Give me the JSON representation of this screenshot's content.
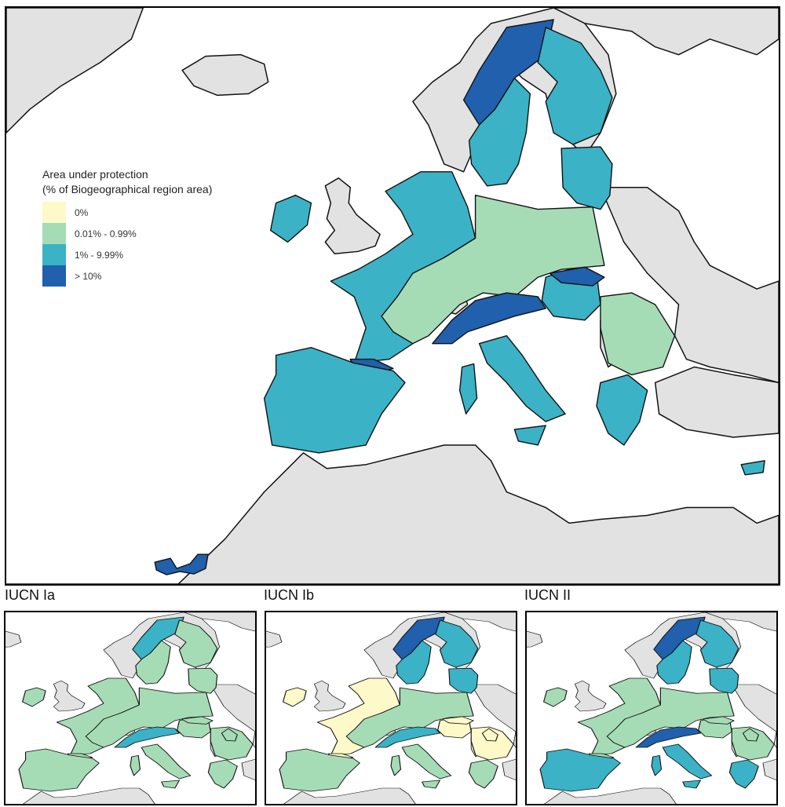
{
  "legend": {
    "title_line1": "Area under protection",
    "title_line2": "(% of Biogeographical region area)",
    "items": [
      {
        "label": "0%",
        "color": "#fdf9c9"
      },
      {
        "label": "0.01% - 0.99%",
        "color": "#a6dcb5"
      },
      {
        "label": "1% - 9.99%",
        "color": "#3bb2c6"
      },
      {
        "label": "> 10%",
        "color": "#2060ad"
      }
    ]
  },
  "panels": [
    {
      "title": "IUCN Ia"
    },
    {
      "title": "IUCN Ib"
    },
    {
      "title": "IUCN II"
    }
  ],
  "colors": {
    "sea": "#ffffff",
    "non_eu_land": "#e2e2e2",
    "outline": "#111111"
  },
  "main_map": {
    "regions": [
      {
        "name": "Scandinavian mountains (Alpine)",
        "class": 3
      },
      {
        "name": "Sweden (Boreal)",
        "class": 2
      },
      {
        "name": "Finland (Boreal)",
        "class": 2
      },
      {
        "name": "Baltic states",
        "class": 2
      },
      {
        "name": "Ireland",
        "class": 2
      },
      {
        "name": "Atlantic coast",
        "class": 2
      },
      {
        "name": "Continental",
        "class": 1
      },
      {
        "name": "Pannonian",
        "class": 2
      },
      {
        "name": "Carpathians (Alpine)",
        "class": 3
      },
      {
        "name": "Alps",
        "class": 3
      },
      {
        "name": "Pyrenees",
        "class": 3
      },
      {
        "name": "Iberia (Mediterranean)",
        "class": 2
      },
      {
        "name": "Italy (Mediterranean)",
        "class": 2
      },
      {
        "name": "Balkan (Black Sea / Continental)",
        "class": 1
      },
      {
        "name": "Greece (Mediterranean)",
        "class": 2
      },
      {
        "name": "Macaronesia",
        "class": 3
      }
    ]
  },
  "small_maps": [
    {
      "title_ref": "IUCN Ia",
      "regions": [
        {
          "name": "Scandinavian mountains",
          "class": 2
        },
        {
          "name": "Sweden",
          "class": 1
        },
        {
          "name": "Finland",
          "class": 1
        },
        {
          "name": "Baltic",
          "class": 1
        },
        {
          "name": "Ireland",
          "class": 1
        },
        {
          "name": "Atlantic",
          "class": 1
        },
        {
          "name": "Continental",
          "class": 1
        },
        {
          "name": "Alps",
          "class": 2
        },
        {
          "name": "Iberia",
          "class": 1
        },
        {
          "name": "Italy",
          "class": 1
        },
        {
          "name": "Balkan",
          "class": 1
        },
        {
          "name": "Greece",
          "class": 1
        }
      ]
    },
    {
      "title_ref": "IUCN Ib",
      "regions": [
        {
          "name": "Scandinavian mountains",
          "class": 3
        },
        {
          "name": "Sweden",
          "class": 2
        },
        {
          "name": "Finland",
          "class": 2
        },
        {
          "name": "Baltic",
          "class": 2
        },
        {
          "name": "Ireland",
          "class": 0
        },
        {
          "name": "Atlantic",
          "class": 0
        },
        {
          "name": "Continental",
          "class": 1
        },
        {
          "name": "Alps",
          "class": 2
        },
        {
          "name": "Iberia",
          "class": 1
        },
        {
          "name": "Italy",
          "class": 1
        },
        {
          "name": "Balkan",
          "class": 0
        },
        {
          "name": "Greece",
          "class": 1
        }
      ]
    },
    {
      "title_ref": "IUCN II",
      "regions": [
        {
          "name": "Scandinavian mountains",
          "class": 3
        },
        {
          "name": "Sweden",
          "class": 2
        },
        {
          "name": "Finland",
          "class": 2
        },
        {
          "name": "Baltic",
          "class": 2
        },
        {
          "name": "Ireland",
          "class": 1
        },
        {
          "name": "Atlantic",
          "class": 1
        },
        {
          "name": "Continental",
          "class": 1
        },
        {
          "name": "Alps",
          "class": 3
        },
        {
          "name": "Iberia",
          "class": 2
        },
        {
          "name": "Italy",
          "class": 2
        },
        {
          "name": "Balkan",
          "class": 1
        },
        {
          "name": "Greece",
          "class": 2
        }
      ]
    }
  ]
}
